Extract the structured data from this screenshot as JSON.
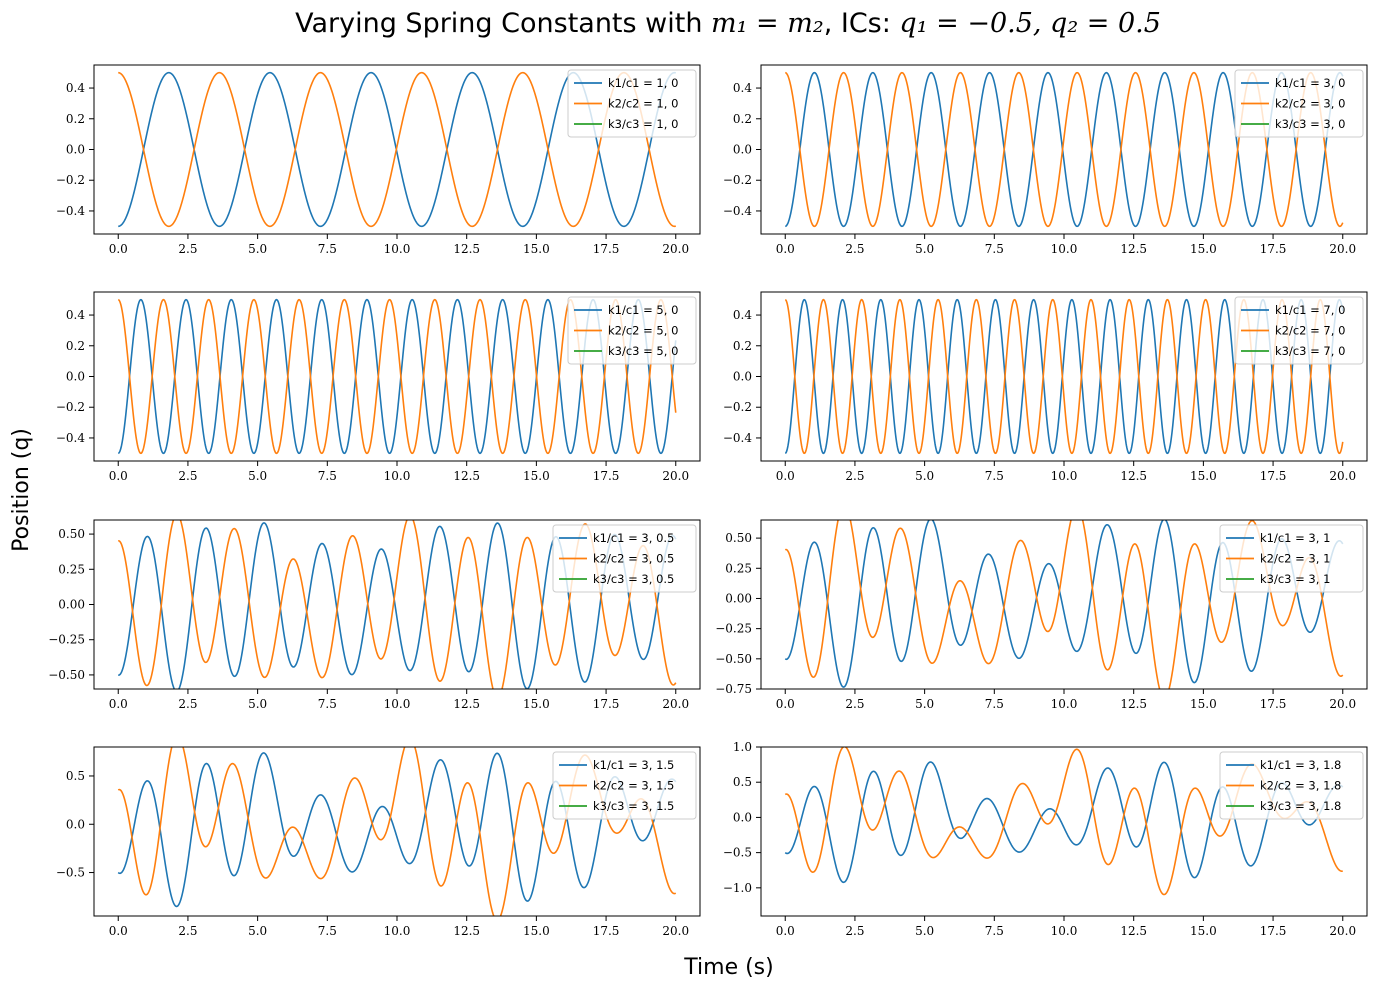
{
  "figure": {
    "title_text": "Varying Spring Constants with ",
    "title_math": "m₁ = m₂",
    "title_mid": ", ICs: ",
    "title_math2": "q₁ = −0.5,  q₂ = 0.5",
    "xlabel": "Time (s)",
    "ylabel": "Position (q)"
  },
  "colors": {
    "mass1": "#1f77b4",
    "mass2": "#ff7f0e",
    "mass3": "#2ca02c"
  },
  "chart_data": [
    {
      "type": "line",
      "x_range": [
        0,
        20
      ],
      "ylim": [
        -0.55,
        0.55
      ],
      "yticks": [
        "0.4",
        "0.2",
        "0.0",
        "−0.2",
        "−0.4"
      ],
      "ytick_values": [
        0.4,
        0.2,
        0.0,
        -0.2,
        -0.4
      ],
      "xticks": [
        "0.0",
        "2.5",
        "5.0",
        "7.5",
        "10.0",
        "12.5",
        "15.0",
        "17.5",
        "20.0"
      ],
      "legend": [
        "k1/c1 = 1, 0",
        "k2/c2 = 1, 0",
        "k3/c3 = 1, 0"
      ],
      "series": [
        {
          "name": "k1/c1 = 1, 0",
          "q0": -0.5,
          "omega": 1.732,
          "damping": 0.0
        },
        {
          "name": "k2/c2 = 1, 0",
          "q0": 0.5,
          "omega": 1.732,
          "damping": 0.0
        },
        {
          "name": "k3/c3 = 1, 0",
          "values": []
        }
      ]
    },
    {
      "type": "line",
      "x_range": [
        0,
        20
      ],
      "ylim": [
        -0.55,
        0.55
      ],
      "yticks": [
        "0.4",
        "0.2",
        "0.0",
        "−0.2",
        "−0.4"
      ],
      "ytick_values": [
        0.4,
        0.2,
        0.0,
        -0.2,
        -0.4
      ],
      "xticks": [
        "0.0",
        "2.5",
        "5.0",
        "7.5",
        "10.0",
        "12.5",
        "15.0",
        "17.5",
        "20.0"
      ],
      "legend": [
        "k1/c1 = 3, 0",
        "k2/c2 = 3, 0",
        "k3/c3 = 3, 0"
      ],
      "series": [
        {
          "name": "k1/c1 = 3, 0",
          "q0": -0.5,
          "omega": 3.0,
          "damping": 0.0
        },
        {
          "name": "k2/c2 = 3, 0",
          "q0": 0.5,
          "omega": 3.0,
          "damping": 0.0
        },
        {
          "name": "k3/c3 = 3, 0",
          "values": []
        }
      ]
    },
    {
      "type": "line",
      "x_range": [
        0,
        20
      ],
      "ylim": [
        -0.55,
        0.55
      ],
      "yticks": [
        "0.4",
        "0.2",
        "0.0",
        "−0.2",
        "−0.4"
      ],
      "ytick_values": [
        0.4,
        0.2,
        0.0,
        -0.2,
        -0.4
      ],
      "xticks": [
        "0.0",
        "2.5",
        "5.0",
        "7.5",
        "10.0",
        "12.5",
        "15.0",
        "17.5",
        "20.0"
      ],
      "legend": [
        "k1/c1 = 5, 0",
        "k2/c2 = 5, 0",
        "k3/c3 = 5, 0"
      ],
      "series": [
        {
          "name": "k1/c1 = 5, 0",
          "q0": -0.5,
          "omega": 3.873,
          "damping": 0.0
        },
        {
          "name": "k2/c2 = 5, 0",
          "q0": 0.5,
          "omega": 3.873,
          "damping": 0.0
        },
        {
          "name": "k3/c3 = 5, 0",
          "values": []
        }
      ]
    },
    {
      "type": "line",
      "x_range": [
        0,
        20
      ],
      "ylim": [
        -0.55,
        0.55
      ],
      "yticks": [
        "0.4",
        "0.2",
        "0.0",
        "−0.2",
        "−0.4"
      ],
      "ytick_values": [
        0.4,
        0.2,
        0.0,
        -0.2,
        -0.4
      ],
      "xticks": [
        "0.0",
        "2.5",
        "5.0",
        "7.5",
        "10.0",
        "12.5",
        "15.0",
        "17.5",
        "20.0"
      ],
      "legend": [
        "k1/c1 = 7, 0",
        "k2/c2 = 7, 0",
        "k3/c3 = 7, 0"
      ],
      "series": [
        {
          "name": "k1/c1 = 7, 0",
          "q0": -0.5,
          "omega": 4.583,
          "damping": 0.0
        },
        {
          "name": "k2/c2 = 7, 0",
          "q0": 0.5,
          "omega": 4.583,
          "damping": 0.0
        },
        {
          "name": "k3/c3 = 7, 0",
          "values": []
        }
      ]
    },
    {
      "type": "line",
      "x_range": [
        0,
        20
      ],
      "ylim": [
        -0.6,
        0.6
      ],
      "yticks": [
        "0.50",
        "0.25",
        "0.00",
        "−0.25",
        "−0.50"
      ],
      "ytick_values": [
        0.5,
        0.25,
        0.0,
        -0.25,
        -0.5
      ],
      "xticks": [
        "0.0",
        "2.5",
        "5.0",
        "7.5",
        "10.0",
        "12.5",
        "15.0",
        "17.5",
        "20.0"
      ],
      "legend": [
        "k1/c1 = 3, 0.5",
        "k2/c2 = 3, 0.5",
        "k3/c3 = 3, 0.5"
      ],
      "series": [
        {
          "name": "k1/c1 = 3, 0.5",
          "q0": -0.5,
          "omega": 3.0,
          "damping": 0.5
        },
        {
          "name": "k2/c2 = 3, 0.5",
          "q0": 0.5,
          "omega": 3.0,
          "damping": 0.5
        },
        {
          "name": "k3/c3 = 3, 0.5",
          "values": []
        }
      ]
    },
    {
      "type": "line",
      "x_range": [
        0,
        20
      ],
      "ylim": [
        -0.75,
        0.65
      ],
      "yticks": [
        "0.50",
        "0.25",
        "0.00",
        "−0.25",
        "−0.50",
        "−0.75"
      ],
      "ytick_values": [
        0.5,
        0.25,
        0.0,
        -0.25,
        -0.5,
        -0.75
      ],
      "xticks": [
        "0.0",
        "2.5",
        "5.0",
        "7.5",
        "10.0",
        "12.5",
        "15.0",
        "17.5",
        "20.0"
      ],
      "legend": [
        "k1/c1 = 3, 1",
        "k2/c2 = 3, 1",
        "k3/c3 = 3, 1"
      ],
      "series": [
        {
          "name": "k1/c1 = 3, 1",
          "q0": -0.5,
          "omega": 3.0,
          "damping": 1.0
        },
        {
          "name": "k2/c2 = 3, 1",
          "q0": 0.5,
          "omega": 3.0,
          "damping": 1.0
        },
        {
          "name": "k3/c3 = 3, 1",
          "values": []
        }
      ]
    },
    {
      "type": "line",
      "x_range": [
        0,
        20
      ],
      "ylim": [
        -0.95,
        0.8
      ],
      "yticks": [
        "0.5",
        "0.0",
        "−0.5"
      ],
      "ytick_values": [
        0.5,
        0.0,
        -0.5
      ],
      "xticks": [
        "0.0",
        "2.5",
        "5.0",
        "7.5",
        "10.0",
        "12.5",
        "15.0",
        "17.5",
        "20.0"
      ],
      "legend": [
        "k1/c1 = 3, 1.5",
        "k2/c2 = 3, 1.5",
        "k3/c3 = 3, 1.5"
      ],
      "series": [
        {
          "name": "k1/c1 = 3, 1.5",
          "q0": -0.5,
          "omega": 3.0,
          "damping": 1.5
        },
        {
          "name": "k2/c2 = 3, 1.5",
          "q0": 0.5,
          "omega": 3.0,
          "damping": 1.5
        },
        {
          "name": "k3/c3 = 3, 1.5",
          "values": []
        }
      ]
    },
    {
      "type": "line",
      "x_range": [
        0,
        20
      ],
      "ylim": [
        -1.4,
        1.0
      ],
      "yticks": [
        "1.0",
        "0.5",
        "0.0",
        "−0.5",
        "−1.0"
      ],
      "ytick_values": [
        1.0,
        0.5,
        0.0,
        -0.5,
        -1.0
      ],
      "xticks": [
        "0.0",
        "2.5",
        "5.0",
        "7.5",
        "10.0",
        "12.5",
        "15.0",
        "17.5",
        "20.0"
      ],
      "legend": [
        "k1/c1 = 3, 1.8",
        "k2/c2 = 3, 1.8",
        "k3/c3 = 3, 1.8"
      ],
      "series": [
        {
          "name": "k1/c1 = 3, 1.8",
          "q0": -0.5,
          "omega": 3.0,
          "damping": 1.8
        },
        {
          "name": "k2/c2 = 3, 1.8",
          "q0": 0.5,
          "omega": 3.0,
          "damping": 1.8
        },
        {
          "name": "k3/c3 = 3, 1.8",
          "values": []
        }
      ]
    }
  ]
}
